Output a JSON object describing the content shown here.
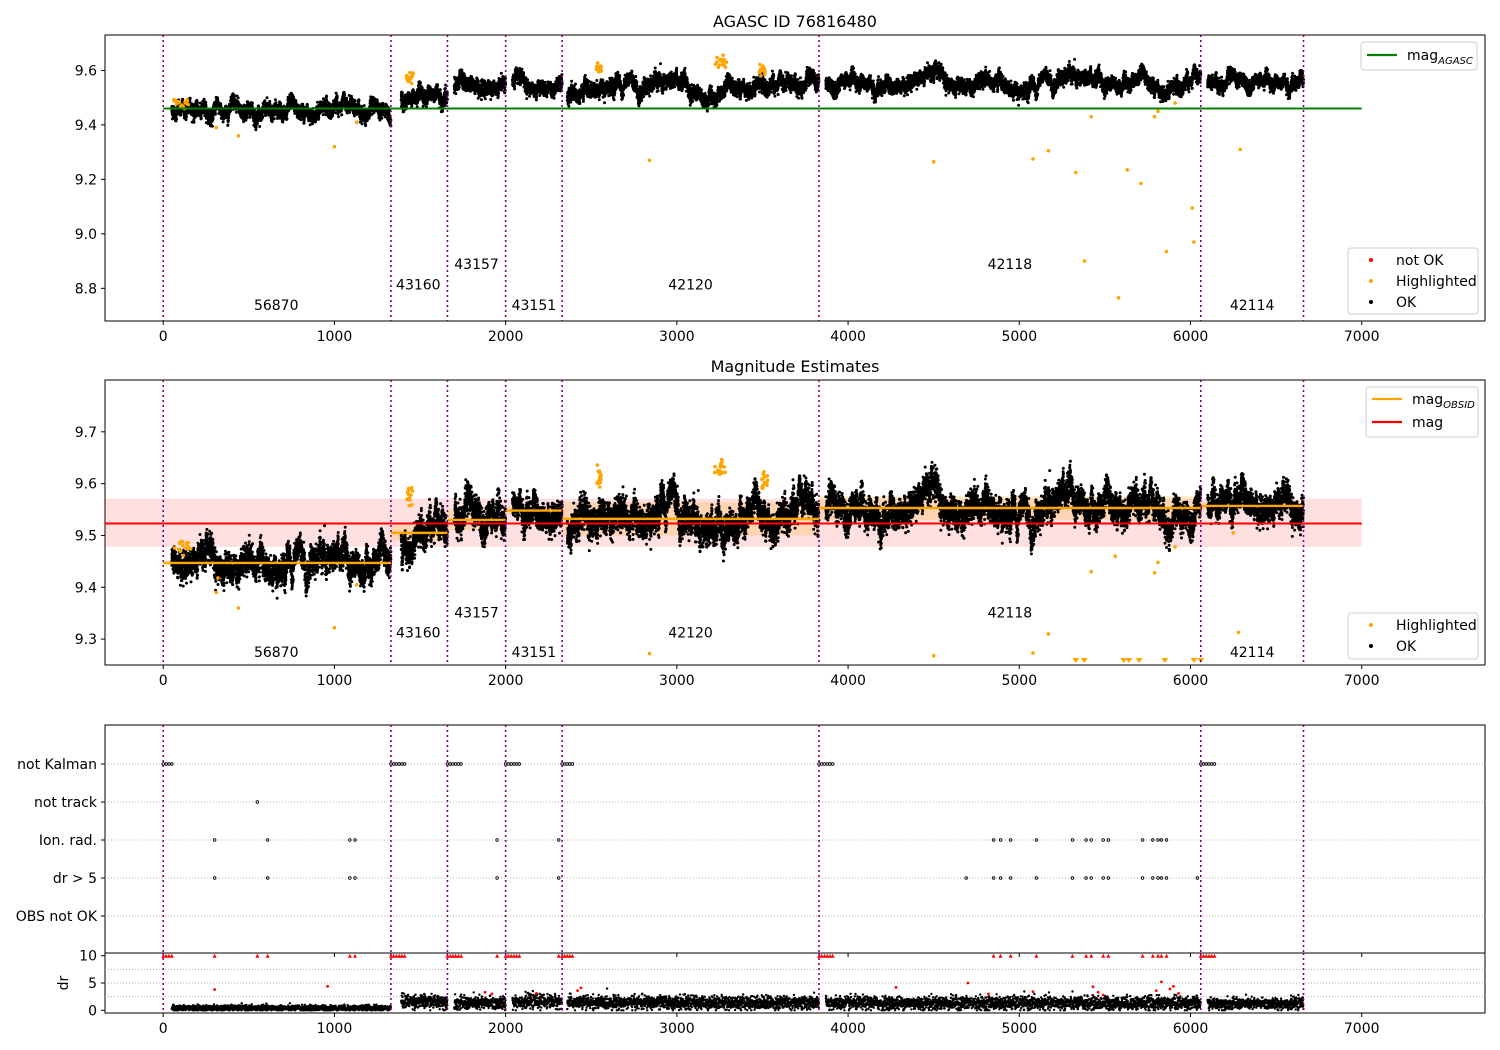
{
  "chart_data": [
    {
      "id": "panel1",
      "type": "scatter",
      "title": "AGASC ID 76816480",
      "xlim": [
        -340,
        7720
      ],
      "ylim": [
        8.68,
        9.73
      ],
      "xticks": [
        0,
        1000,
        2000,
        3000,
        4000,
        5000,
        6000,
        7000
      ],
      "xtick_labels": [
        "0",
        "1000",
        "2000",
        "3000",
        "4000",
        "5000",
        "6000",
        "7000"
      ],
      "yticks": [
        8.8,
        9.0,
        9.2,
        9.4,
        9.6
      ],
      "ytick_labels": [
        "8.8",
        "9.0",
        "9.2",
        "9.4",
        "9.6"
      ],
      "obsid_boundaries": [
        0,
        1330,
        1660,
        2000,
        2330,
        3830,
        6060,
        6660
      ],
      "obsid_labels": [
        {
          "text": "56870",
          "x": 660,
          "y": 8.72
        },
        {
          "text": "43160",
          "x": 1490,
          "y": 8.795
        },
        {
          "text": "43157",
          "x": 1830,
          "y": 8.87
        },
        {
          "text": "43151",
          "x": 2165,
          "y": 8.72
        },
        {
          "text": "42120",
          "x": 3080,
          "y": 8.795
        },
        {
          "text": "42118",
          "x": 4945,
          "y": 8.87
        },
        {
          "text": "42114",
          "x": 6360,
          "y": 8.72
        }
      ],
      "reference_line": {
        "name": "mag_AGASC",
        "label": "mag",
        "sub": "AGASC",
        "y": 9.46,
        "x_range": [
          0,
          7000
        ],
        "color": "#008000"
      },
      "segments": [
        {
          "obsid": "56870",
          "x": [
            50,
            1330
          ],
          "base": 9.452,
          "amp": 0.006,
          "noise": 0.011
        },
        {
          "obsid": "43160",
          "x": [
            1390,
            1660
          ],
          "base": 9.505,
          "amp": 0.028,
          "noise": 0.012
        },
        {
          "obsid": "43157",
          "x": [
            1700,
            2000
          ],
          "base": 9.535,
          "amp": 0.03,
          "noise": 0.012
        },
        {
          "obsid": "43151",
          "x": [
            2040,
            2330
          ],
          "base": 9.55,
          "amp": 0.015,
          "noise": 0.01
        },
        {
          "obsid": "42120",
          "x": [
            2360,
            3830
          ],
          "base": 9.535,
          "amp": 0.03,
          "noise": 0.012
        },
        {
          "obsid": "42118",
          "x": [
            3870,
            6060
          ],
          "base": 9.555,
          "amp": 0.025,
          "noise": 0.011
        },
        {
          "obsid": "42114",
          "x": [
            6100,
            6660
          ],
          "base": 9.555,
          "amp": 0.012,
          "noise": 0.01
        }
      ],
      "highlight_clusters": [
        {
          "x": [
            60,
            160
          ],
          "y": 9.475
        },
        {
          "x": [
            1420,
            1460
          ],
          "y": 9.575
        },
        {
          "x": [
            2530,
            2560
          ],
          "y": 9.61
        },
        {
          "x": [
            3220,
            3290
          ],
          "y": 9.63
        },
        {
          "x": [
            3480,
            3530
          ],
          "y": 9.6
        }
      ],
      "highlight_points": [
        [
          310,
          9.39
        ],
        [
          440,
          9.36
        ],
        [
          1000,
          9.32
        ],
        [
          1130,
          9.41
        ],
        [
          2840,
          9.27
        ],
        [
          4500,
          9.265
        ],
        [
          5080,
          9.275
        ],
        [
          5170,
          9.305
        ],
        [
          5330,
          9.225
        ],
        [
          5380,
          8.9
        ],
        [
          5420,
          9.43
        ],
        [
          5580,
          8.765
        ],
        [
          5630,
          9.235
        ],
        [
          5710,
          9.185
        ],
        [
          5790,
          9.43
        ],
        [
          5810,
          9.45
        ],
        [
          5860,
          8.935
        ],
        [
          6010,
          9.095
        ],
        [
          6020,
          8.97
        ],
        [
          6290,
          9.31
        ],
        [
          5910,
          9.48
        ]
      ],
      "legend_top": {
        "position": "top-right",
        "entries": [
          {
            "label": "mag",
            "sub": "AGASC",
            "color": "#008000"
          }
        ]
      },
      "legend_bottom": {
        "position": "lower-right",
        "entries": [
          {
            "label": "not OK",
            "color": "#ff0000"
          },
          {
            "label": "Highlighted",
            "color": "#ffa500"
          },
          {
            "label": "OK",
            "color": "#000000"
          }
        ]
      }
    },
    {
      "id": "panel2",
      "type": "scatter",
      "title": "Magnitude Estimates",
      "xlim": [
        -340,
        7720
      ],
      "ylim": [
        9.25,
        9.8
      ],
      "xticks": [
        0,
        1000,
        2000,
        3000,
        4000,
        5000,
        6000,
        7000
      ],
      "xtick_labels": [
        "0",
        "1000",
        "2000",
        "3000",
        "4000",
        "5000",
        "6000",
        "7000"
      ],
      "yticks": [
        9.3,
        9.4,
        9.5,
        9.6,
        9.7
      ],
      "ytick_labels": [
        "9.3",
        "9.4",
        "9.5",
        "9.6",
        "9.7"
      ],
      "obsid_boundaries": [
        0,
        1330,
        1660,
        2000,
        2330,
        3830,
        6060,
        6660
      ],
      "obsid_labels": [
        {
          "text": "56870",
          "x": 660,
          "y": 9.265
        },
        {
          "text": "43160",
          "x": 1490,
          "y": 9.303
        },
        {
          "text": "43157",
          "x": 1830,
          "y": 9.342
        },
        {
          "text": "43151",
          "x": 2165,
          "y": 9.265
        },
        {
          "text": "42120",
          "x": 3080,
          "y": 9.303
        },
        {
          "text": "42118",
          "x": 4945,
          "y": 9.342
        },
        {
          "text": "42114",
          "x": 6360,
          "y": 9.265
        }
      ],
      "mag_line": {
        "name": "mag",
        "y": 9.523,
        "band": [
          9.478,
          9.571
        ],
        "x_range": [
          -340,
          7000
        ],
        "color": "#ff0000"
      },
      "obsid_mags": [
        {
          "obsid": "56870",
          "x": [
            0,
            1330
          ],
          "y": 9.447,
          "band": [
            9.442,
            9.452
          ]
        },
        {
          "obsid": "43160",
          "x": [
            1330,
            1660
          ],
          "y": 9.505,
          "band": [
            9.49,
            9.52
          ]
        },
        {
          "obsid": "43157",
          "x": [
            1660,
            2000
          ],
          "y": 9.53,
          "band": [
            9.51,
            9.55
          ]
        },
        {
          "obsid": "43151",
          "x": [
            2000,
            2330
          ],
          "y": 9.548,
          "band": [
            9.54,
            9.556
          ]
        },
        {
          "obsid": "42120",
          "x": [
            2330,
            3830
          ],
          "y": 9.532,
          "band": [
            9.5,
            9.564
          ]
        },
        {
          "obsid": "42118",
          "x": [
            3830,
            6060
          ],
          "y": 9.553,
          "band": [
            9.53,
            9.576
          ]
        },
        {
          "obsid": "42114",
          "x": [
            6060,
            6660
          ],
          "y": 9.557,
          "band": [
            9.55,
            9.564
          ]
        }
      ],
      "segments": [
        {
          "obsid": "56870",
          "x": [
            50,
            1330
          ],
          "base": 9.447,
          "amp": 0.007,
          "noise": 0.011
        },
        {
          "obsid": "43160",
          "x": [
            1390,
            1660
          ],
          "base": 9.505,
          "amp": 0.03,
          "noise": 0.012
        },
        {
          "obsid": "43157",
          "x": [
            1700,
            2000
          ],
          "base": 9.53,
          "amp": 0.035,
          "noise": 0.013
        },
        {
          "obsid": "43151",
          "x": [
            2040,
            2330
          ],
          "base": 9.548,
          "amp": 0.018,
          "noise": 0.011
        },
        {
          "obsid": "42120",
          "x": [
            2360,
            3830
          ],
          "base": 9.532,
          "amp": 0.032,
          "noise": 0.013
        },
        {
          "obsid": "42118",
          "x": [
            3870,
            6060
          ],
          "base": 9.553,
          "amp": 0.028,
          "noise": 0.012
        },
        {
          "obsid": "42114",
          "x": [
            6100,
            6660
          ],
          "base": 9.557,
          "amp": 0.013,
          "noise": 0.011
        }
      ],
      "highlight_clusters": [
        {
          "x": [
            60,
            160
          ],
          "y": 9.478
        },
        {
          "x": [
            1420,
            1460
          ],
          "y": 9.575
        },
        {
          "x": [
            2530,
            2560
          ],
          "y": 9.61
        },
        {
          "x": [
            3220,
            3290
          ],
          "y": 9.63
        },
        {
          "x": [
            3480,
            3530
          ],
          "y": 9.605
        }
      ],
      "highlight_points": [
        [
          310,
          9.39
        ],
        [
          320,
          9.418
        ],
        [
          440,
          9.36
        ],
        [
          1000,
          9.322
        ],
        [
          1130,
          9.405
        ],
        [
          2840,
          9.272
        ],
        [
          4500,
          9.268
        ],
        [
          5080,
          9.273
        ],
        [
          5170,
          9.31
        ],
        [
          5420,
          9.43
        ],
        [
          5560,
          9.46
        ],
        [
          5790,
          9.428
        ],
        [
          5810,
          9.448
        ],
        [
          5910,
          9.478
        ],
        [
          6280,
          9.313
        ],
        [
          6250,
          9.505
        ]
      ],
      "clipped_markers": [
        5330,
        5380,
        5610,
        5640,
        5700,
        5850,
        6020,
        6060
      ],
      "legend_top": {
        "position": "top-right",
        "entries": [
          {
            "label": "mag",
            "sub": "OBSID",
            "color": "#ffa500"
          },
          {
            "label": "mag",
            "sub": "",
            "color": "#ff0000"
          }
        ]
      },
      "legend_bottom": {
        "position": "lower-right",
        "entries": [
          {
            "label": "Highlighted",
            "color": "#ffa500"
          },
          {
            "label": "OK",
            "color": "#000000"
          }
        ]
      }
    },
    {
      "id": "panel3",
      "type": "scatter",
      "xlim": [
        -340,
        7720
      ],
      "xticks": [
        0,
        1000,
        2000,
        3000,
        4000,
        5000,
        6000,
        7000
      ],
      "xtick_labels": [
        "0",
        "1000",
        "2000",
        "3000",
        "4000",
        "5000",
        "6000",
        "7000"
      ],
      "flag_rows": [
        "not Kalman",
        "not track",
        "Ion. rad.",
        "dr > 5",
        "OBS not OK"
      ],
      "obsid_boundaries": [
        0,
        1330,
        1660,
        2000,
        2330,
        3830,
        6060,
        6660
      ],
      "flags": {
        "not Kalman": [
          [
            0,
            50
          ],
          [
            1330,
            1410
          ],
          [
            1660,
            1740
          ],
          [
            2000,
            2080
          ],
          [
            2330,
            2390
          ],
          [
            3830,
            3910
          ],
          [
            6060,
            6140
          ]
        ],
        "not track": [
          [
            550,
            555
          ]
        ],
        "Ion. rad.": [
          [
            300,
            302
          ],
          [
            610,
            612
          ],
          [
            1090,
            1120
          ],
          [
            1950,
            1952
          ],
          [
            2310,
            2312
          ],
          [
            4850,
            4852
          ],
          [
            4890,
            4892
          ],
          [
            4950,
            4952
          ],
          [
            5100,
            5102
          ],
          [
            5310,
            5312
          ],
          [
            5390,
            5392
          ],
          [
            5420,
            5422
          ],
          [
            5490,
            5492
          ],
          [
            5520,
            5530
          ],
          [
            5720,
            5722
          ],
          [
            5780,
            5782
          ],
          [
            5810,
            5812
          ],
          [
            5830,
            5832
          ],
          [
            5860,
            5862
          ]
        ],
        "dr > 5": [
          [
            300,
            302
          ],
          [
            610,
            612
          ],
          [
            1090,
            1120
          ],
          [
            1950,
            1952
          ],
          [
            2310,
            2312
          ],
          [
            4690,
            4692
          ],
          [
            4850,
            4852
          ],
          [
            4890,
            4892
          ],
          [
            4950,
            4952
          ],
          [
            5100,
            5102
          ],
          [
            5310,
            5312
          ],
          [
            5390,
            5392
          ],
          [
            5420,
            5422
          ],
          [
            5490,
            5492
          ],
          [
            5520,
            5530
          ],
          [
            5720,
            5722
          ],
          [
            5780,
            5782
          ],
          [
            5810,
            5812
          ],
          [
            5830,
            5832
          ],
          [
            5860,
            5862
          ],
          [
            6040,
            6042
          ]
        ],
        "OBS not OK": []
      }
    },
    {
      "id": "panel4",
      "type": "scatter",
      "ylabel": "dr",
      "xlim": [
        -340,
        7720
      ],
      "ylim": [
        -0.5,
        10.5
      ],
      "yticks": [
        0,
        5,
        10
      ],
      "ytick_labels": [
        "0",
        "5",
        "10"
      ],
      "xticks": [
        0,
        1000,
        2000,
        3000,
        4000,
        5000,
        6000,
        7000
      ],
      "xtick_labels": [
        "0",
        "1000",
        "2000",
        "3000",
        "4000",
        "5000",
        "6000",
        "7000"
      ],
      "obsid_boundaries": [
        0,
        1330,
        1660,
        2000,
        2330,
        3830,
        6060,
        6660
      ],
      "segments": [
        {
          "x": [
            50,
            1330
          ],
          "base": 0.4,
          "noise": 0.25
        },
        {
          "x": [
            1390,
            1660
          ],
          "base": 1.6,
          "noise": 0.6
        },
        {
          "x": [
            1700,
            2000
          ],
          "base": 1.3,
          "noise": 0.6
        },
        {
          "x": [
            2040,
            2330
          ],
          "base": 1.6,
          "noise": 0.6
        },
        {
          "x": [
            2360,
            3830
          ],
          "base": 1.4,
          "noise": 0.6
        },
        {
          "x": [
            3870,
            6060
          ],
          "base": 1.3,
          "noise": 0.6
        },
        {
          "x": [
            6100,
            6660
          ],
          "base": 1.2,
          "noise": 0.5
        }
      ],
      "capped_at_10": [
        [
          0,
          50
        ],
        [
          1330,
          1410
        ],
        [
          1660,
          1740
        ],
        [
          2000,
          2080
        ],
        [
          2330,
          2390
        ],
        [
          3830,
          3910
        ],
        [
          6060,
          6140
        ],
        [
          300,
          302
        ],
        [
          550,
          552
        ],
        [
          610,
          612
        ],
        [
          1090,
          1120
        ],
        [
          1950,
          1952
        ],
        [
          2310,
          2312
        ],
        [
          4850,
          4852
        ],
        [
          4890,
          4892
        ],
        [
          4950,
          4952
        ],
        [
          5100,
          5102
        ],
        [
          5310,
          5312
        ],
        [
          5390,
          5392
        ],
        [
          5420,
          5422
        ],
        [
          5490,
          5492
        ],
        [
          5520,
          5530
        ],
        [
          5720,
          5722
        ],
        [
          5780,
          5782
        ],
        [
          5810,
          5812
        ],
        [
          5830,
          5832
        ],
        [
          5860,
          5862
        ]
      ],
      "red_points": [
        [
          300,
          3.8
        ],
        [
          960,
          4.4
        ],
        [
          1880,
          3.3
        ],
        [
          1920,
          3.0
        ],
        [
          2180,
          3.1
        ],
        [
          2420,
          3.6
        ],
        [
          2440,
          4.1
        ],
        [
          4280,
          4.2
        ],
        [
          4700,
          5.0
        ],
        [
          4820,
          3.0
        ],
        [
          5080,
          3.4
        ],
        [
          5430,
          4.3
        ],
        [
          5460,
          3.3
        ],
        [
          5490,
          2.8
        ],
        [
          5800,
          3.6
        ],
        [
          5830,
          5.2
        ],
        [
          5880,
          3.9
        ],
        [
          5900,
          4.4
        ],
        [
          5930,
          3.1
        ]
      ]
    }
  ]
}
